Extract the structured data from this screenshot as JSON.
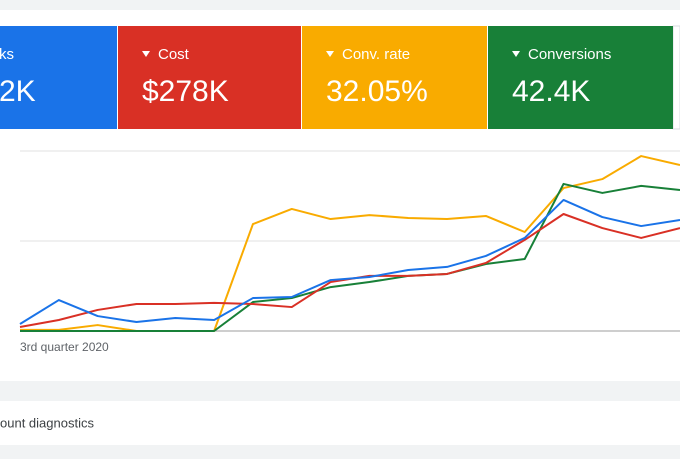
{
  "cards": [
    {
      "label": "ks",
      "value": "2K",
      "color": "#1a73e8"
    },
    {
      "label": "Cost",
      "value": "$278K",
      "color": "#d93025"
    },
    {
      "label": "Conv. rate",
      "value": "32.05%",
      "color": "#f9ab00"
    },
    {
      "label": "Conversions",
      "value": "42.4K",
      "color": "#188038"
    }
  ],
  "chart_data": {
    "type": "line",
    "categories": [
      "3rd quarter 2020",
      null,
      null,
      null,
      null,
      null,
      null,
      null,
      null,
      null,
      null,
      null,
      null,
      null,
      null,
      null,
      null,
      null
    ],
    "ylim": [
      0,
      100
    ],
    "series": [
      {
        "color": "#f9ab00",
        "values": [
          0.6,
          0.6,
          3.3,
          0,
          0,
          0,
          59.4,
          67.8,
          62.2,
          64.4,
          62.8,
          62.2,
          63.9,
          55,
          79.4,
          84.4,
          97.2,
          92.2
        ]
      },
      {
        "color": "#188038",
        "values": [
          0,
          0,
          0,
          0,
          0,
          0,
          16.1,
          18.3,
          24.4,
          27.2,
          30.6,
          31.7,
          37.2,
          40,
          81.7,
          76.7,
          80.6,
          78.3
        ]
      },
      {
        "color": "#d93025",
        "values": [
          2.2,
          6.1,
          11.7,
          15,
          15,
          15.6,
          15,
          13.3,
          27.2,
          30.6,
          30.6,
          31.7,
          37.8,
          50.6,
          65,
          57.2,
          51.7,
          57.2
        ]
      },
      {
        "color": "#1a73e8",
        "values": [
          3.9,
          17.2,
          8.3,
          5,
          7.2,
          6.1,
          18.3,
          18.9,
          28.3,
          30,
          33.9,
          35.6,
          41.7,
          51.7,
          72.8,
          63.3,
          58.3,
          61.7
        ]
      }
    ]
  },
  "footer": {
    "text": "ount diagnostics"
  }
}
